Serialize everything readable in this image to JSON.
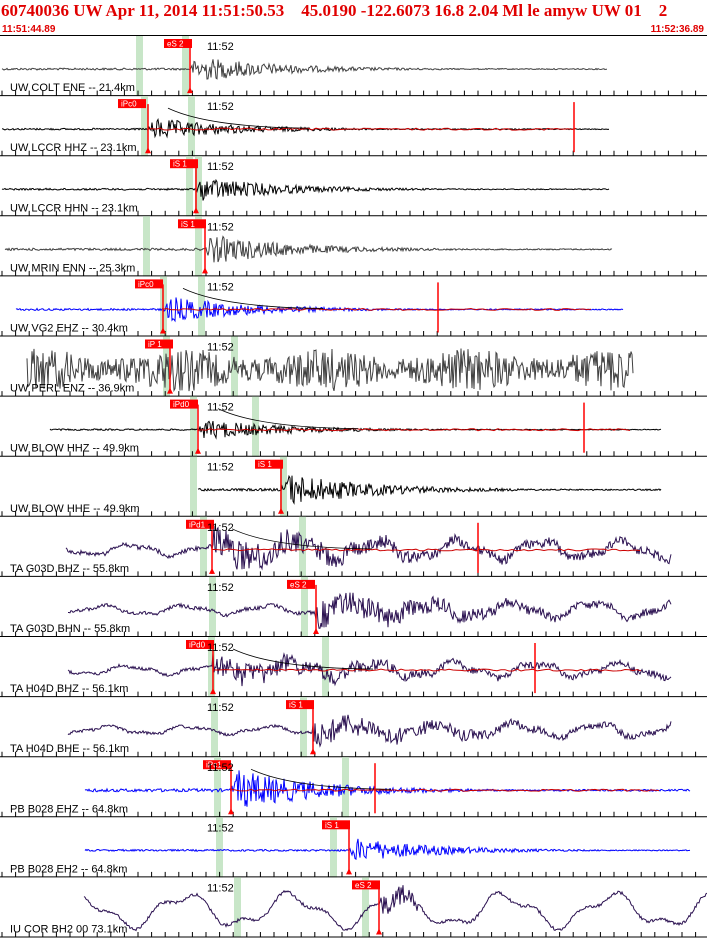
{
  "header": {
    "title": "60740036 UW Apr 11, 2014 11:51:50.53    45.0190 -122.6073 16.8 2.04 Ml le amyw UW 01    2",
    "time_start": "11:51:44.89",
    "time_end": "11:52:36.89"
  },
  "colors": {
    "header_text": "#e00000",
    "pick_box": "#ff0000",
    "pick_text": "#ffffff",
    "residual_line": "#cc0000",
    "window_highlight": "#c8e6c8",
    "trace_black": "#000000",
    "trace_dark_gray": "#404040",
    "trace_blue": "#0000ff",
    "trace_purple": "#2a1050"
  },
  "time_label": "11:52",
  "traces": [
    {
      "label": "UW COLT ENE -- 21.4km",
      "color": "#404040",
      "pick": "eS 2",
      "mode": "hf",
      "kind": "S"
    },
    {
      "label": "UW LCCR HHZ -- 23.1km",
      "color": "#000000",
      "pick": "iPc0",
      "mode": "hf",
      "kind": "P"
    },
    {
      "label": "UW LCCR HHN -- 23.1km",
      "color": "#000000",
      "pick": "iS 1",
      "mode": "hf",
      "kind": "S"
    },
    {
      "label": "UW MRIN ENN -- 25.3km",
      "color": "#404040",
      "pick": "iS 1",
      "mode": "hf",
      "kind": "S"
    },
    {
      "label": "UW VG2 EHZ -- 30.4km",
      "color": "#0000ff",
      "pick": "iPc0",
      "mode": "hf",
      "kind": "P"
    },
    {
      "label": "UW PERL ENZ -- 36.9km",
      "color": "#404040",
      "pick": "iP 1",
      "mode": "noise",
      "kind": "P"
    },
    {
      "label": "UW BLOW HHZ -- 49.9km",
      "color": "#000000",
      "pick": "iPd0",
      "mode": "hf",
      "kind": "P"
    },
    {
      "label": "UW BLOW HHE -- 49.9km",
      "color": "#000000",
      "pick": "iS 1",
      "mode": "hf",
      "kind": "S"
    },
    {
      "label": "TA G03D BHZ -- 55.8km",
      "color": "#2a1050",
      "pick": "iPd1",
      "mode": "lf",
      "kind": "P"
    },
    {
      "label": "TA G03D BHN -- 55.8km",
      "color": "#2a1050",
      "pick": "eS 2",
      "mode": "lf",
      "kind": "S"
    },
    {
      "label": "TA H04D BHZ -- 56.1km",
      "color": "#2a1050",
      "pick": "iPd0",
      "mode": "lf",
      "kind": "P"
    },
    {
      "label": "TA H04D BHE -- 56.1km",
      "color": "#2a1050",
      "pick": "iS 1",
      "mode": "lf",
      "kind": "S"
    },
    {
      "label": "PB B028 EHZ -- 64.8km",
      "color": "#0000ff",
      "pick": "iPc1",
      "mode": "hf",
      "kind": "P"
    },
    {
      "label": "PB B028 EH2 -- 64.8km",
      "color": "#0000ff",
      "pick": "iS 1",
      "mode": "hf",
      "kind": "S"
    },
    {
      "label": "IU COR BH2 00 73.1km",
      "color": "#2a1050",
      "pick": "eS 2",
      "mode": "vlf",
      "kind": "S"
    }
  ]
}
